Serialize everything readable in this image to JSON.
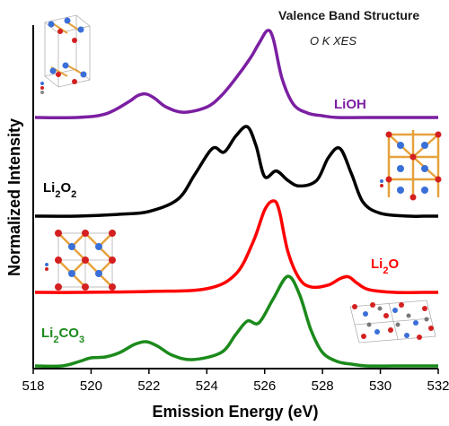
{
  "chart_data": {
    "type": "line",
    "title": "Valence Band Structure",
    "subtitle": "O K XES",
    "xlabel": "Emission Energy (eV)",
    "ylabel": "Normalized Intensity",
    "xlim": [
      518,
      532
    ],
    "x_ticks": [
      "518",
      "520",
      "522",
      "524",
      "526",
      "528",
      "530",
      "532"
    ],
    "grid": false,
    "legend": "series labels placed next to each curve",
    "series": [
      {
        "name": "LiOH",
        "color": "#7b1fa2",
        "x": [
          519.5,
          520.5,
          521.3,
          521.6,
          521.9,
          522.2,
          522.6,
          523.2,
          524.0,
          524.5,
          525.0,
          525.5,
          525.8,
          526.1,
          526.3,
          526.6,
          527.0,
          527.5,
          528.0,
          528.5,
          529.5,
          531.5
        ],
        "y": [
          0.0,
          0.04,
          0.18,
          0.25,
          0.27,
          0.22,
          0.12,
          0.06,
          0.12,
          0.25,
          0.45,
          0.68,
          0.85,
          1.0,
          0.9,
          0.45,
          0.15,
          0.05,
          0.02,
          0.0,
          0.0,
          0.0
        ]
      },
      {
        "name": "Li2O2",
        "color": "#000000",
        "x": [
          519.5,
          521.0,
          522.0,
          523.0,
          523.6,
          524.2,
          524.6,
          525.0,
          525.4,
          525.7,
          526.0,
          526.4,
          526.8,
          527.2,
          527.8,
          528.2,
          528.6,
          529.0,
          529.4,
          530.0,
          531.0,
          531.5
        ],
        "y": [
          0.0,
          0.02,
          0.05,
          0.18,
          0.45,
          0.72,
          0.68,
          0.85,
          0.95,
          0.75,
          0.42,
          0.48,
          0.38,
          0.32,
          0.38,
          0.62,
          0.72,
          0.45,
          0.15,
          0.03,
          0.0,
          0.0
        ]
      },
      {
        "name": "Li2O",
        "color": "#ff0000",
        "x": [
          519.5,
          522.0,
          524.0,
          525.0,
          525.6,
          526.0,
          526.3,
          526.5,
          526.8,
          527.2,
          527.6,
          528.2,
          528.6,
          528.9,
          529.2,
          529.6,
          530.5,
          531.5
        ],
        "y": [
          0.0,
          0.01,
          0.04,
          0.2,
          0.55,
          0.9,
          1.0,
          0.9,
          0.45,
          0.15,
          0.06,
          0.08,
          0.15,
          0.17,
          0.1,
          0.03,
          0.0,
          0.0
        ]
      },
      {
        "name": "Li2CO3",
        "color": "#1b8a1b",
        "x": [
          519.0,
          519.6,
          520.0,
          520.5,
          521.0,
          521.5,
          521.9,
          522.3,
          522.8,
          523.5,
          524.5,
          525.0,
          525.4,
          525.8,
          526.3,
          526.8,
          527.2,
          527.6,
          528.0,
          528.5,
          529.0,
          529.5,
          530.5,
          531.5
        ],
        "y": [
          0.0,
          0.05,
          0.09,
          0.1,
          0.15,
          0.24,
          0.27,
          0.22,
          0.12,
          0.07,
          0.15,
          0.35,
          0.5,
          0.48,
          0.75,
          1.0,
          0.8,
          0.4,
          0.15,
          0.05,
          0.02,
          0.0,
          0.0,
          0.0
        ]
      }
    ]
  }
}
